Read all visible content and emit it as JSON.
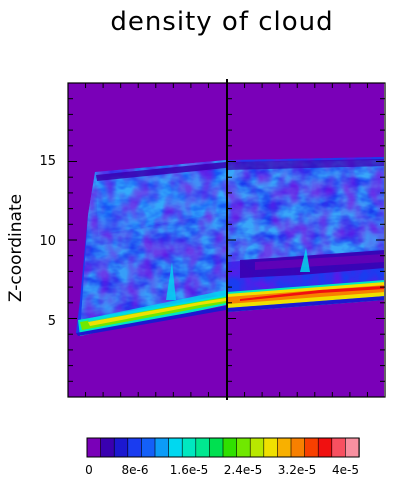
{
  "chart_data": {
    "type": "heatmap",
    "title": "density of cloud",
    "xlabel": "",
    "ylabel": "Z-coordinate",
    "ylim": [
      0,
      20
    ],
    "y_ticks": [
      5,
      10,
      15
    ],
    "panels": [
      {
        "name": "left panel"
      },
      {
        "name": "right panel"
      }
    ],
    "colorbar": {
      "range": [
        0,
        4e-05
      ],
      "tick_labels": [
        "0",
        "8e-6",
        "1.6e-5",
        "2.4e-5",
        "3.2e-5",
        "4e-5"
      ],
      "colors": [
        "#7a00b8",
        "#3a00b0",
        "#1c18d0",
        "#1a3cf0",
        "#1460f8",
        "#0c9cf8",
        "#00d8f0",
        "#00e8c0",
        "#00e890",
        "#00e050",
        "#30e000",
        "#70e800",
        "#b8e800",
        "#f0e000",
        "#f8b000",
        "#f88000",
        "#f84000",
        "#f01010",
        "#f85060",
        "#f890a0"
      ]
    }
  }
}
